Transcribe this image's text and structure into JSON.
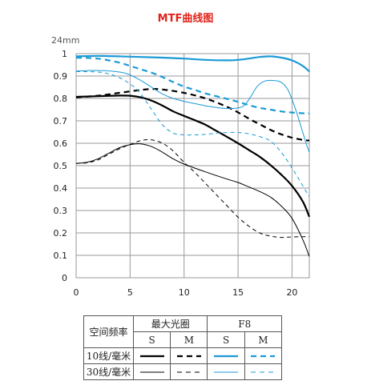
{
  "chart_data": {
    "type": "line",
    "title": "MTF曲线图",
    "focal_label": "24mm",
    "xlim": [
      0,
      21.6
    ],
    "ylim": [
      0,
      1
    ],
    "x_ticks": [
      0,
      5,
      10,
      15,
      20
    ],
    "y_ticks": [
      0,
      0.1,
      0.2,
      0.3,
      0.4,
      0.5,
      0.6,
      0.7,
      0.8,
      0.9,
      1
    ],
    "y_tick_labels": [
      "0",
      "0.1",
      "0.2",
      "0.3",
      "0.4",
      "0.5",
      "0.6",
      "0.7",
      "0.8",
      "0.9",
      "1"
    ],
    "grid": true,
    "colors": {
      "max_aperture": "#000000",
      "f8": "#1a9ad6",
      "title": "#e2231a"
    },
    "series": [
      {
        "group": "max_aperture",
        "freq": "10",
        "type": "S",
        "points": [
          [
            0,
            0.807
          ],
          [
            2,
            0.81
          ],
          [
            4,
            0.813
          ],
          [
            5,
            0.812
          ],
          [
            6,
            0.805
          ],
          [
            7,
            0.79
          ],
          [
            8,
            0.768
          ],
          [
            9,
            0.742
          ],
          [
            10,
            0.722
          ],
          [
            11,
            0.703
          ],
          [
            12,
            0.682
          ],
          [
            13,
            0.655
          ],
          [
            14,
            0.628
          ],
          [
            15,
            0.6
          ],
          [
            16,
            0.57
          ],
          [
            17,
            0.54
          ],
          [
            18,
            0.503
          ],
          [
            19,
            0.46
          ],
          [
            20,
            0.41
          ],
          [
            21,
            0.34
          ],
          [
            21.6,
            0.272
          ]
        ]
      },
      {
        "group": "max_aperture",
        "freq": "10",
        "type": "M",
        "points": [
          [
            0,
            0.805
          ],
          [
            2,
            0.812
          ],
          [
            4,
            0.825
          ],
          [
            6,
            0.838
          ],
          [
            7,
            0.842
          ],
          [
            8,
            0.84
          ],
          [
            10,
            0.825
          ],
          [
            12,
            0.8
          ],
          [
            14,
            0.762
          ],
          [
            15,
            0.738
          ],
          [
            16,
            0.71
          ],
          [
            17,
            0.685
          ],
          [
            18,
            0.66
          ],
          [
            19,
            0.64
          ],
          [
            20,
            0.625
          ],
          [
            21,
            0.615
          ],
          [
            21.6,
            0.612
          ]
        ]
      },
      {
        "group": "max_aperture",
        "freq": "30",
        "type": "S",
        "points": [
          [
            0,
            0.51
          ],
          [
            1,
            0.515
          ],
          [
            2,
            0.53
          ],
          [
            3,
            0.555
          ],
          [
            4,
            0.58
          ],
          [
            5,
            0.594
          ],
          [
            6,
            0.597
          ],
          [
            7,
            0.585
          ],
          [
            8,
            0.56
          ],
          [
            9,
            0.53
          ],
          [
            10,
            0.507
          ],
          [
            12,
            0.472
          ],
          [
            14,
            0.44
          ],
          [
            15,
            0.425
          ],
          [
            16,
            0.405
          ],
          [
            17,
            0.385
          ],
          [
            18,
            0.36
          ],
          [
            19,
            0.32
          ],
          [
            20,
            0.265
          ],
          [
            21,
            0.17
          ],
          [
            21.6,
            0.095
          ]
        ]
      },
      {
        "group": "max_aperture",
        "freq": "30",
        "type": "M",
        "points": [
          [
            0,
            0.51
          ],
          [
            1,
            0.513
          ],
          [
            2,
            0.525
          ],
          [
            3,
            0.55
          ],
          [
            4,
            0.575
          ],
          [
            5,
            0.595
          ],
          [
            6,
            0.612
          ],
          [
            7,
            0.615
          ],
          [
            8,
            0.6
          ],
          [
            9,
            0.565
          ],
          [
            10,
            0.515
          ],
          [
            11,
            0.47
          ],
          [
            12,
            0.42
          ],
          [
            13,
            0.37
          ],
          [
            14,
            0.32
          ],
          [
            15,
            0.27
          ],
          [
            16,
            0.23
          ],
          [
            17,
            0.2
          ],
          [
            18,
            0.186
          ],
          [
            19,
            0.18
          ],
          [
            20,
            0.182
          ],
          [
            21,
            0.183
          ],
          [
            21.6,
            0.183
          ]
        ]
      },
      {
        "group": "f8",
        "freq": "10",
        "type": "S",
        "points": [
          [
            0,
            0.988
          ],
          [
            2,
            0.99
          ],
          [
            4,
            0.988
          ],
          [
            6,
            0.985
          ],
          [
            8,
            0.982
          ],
          [
            10,
            0.978
          ],
          [
            12,
            0.972
          ],
          [
            14,
            0.97
          ],
          [
            15,
            0.972
          ],
          [
            16,
            0.978
          ],
          [
            17,
            0.985
          ],
          [
            18,
            0.988
          ],
          [
            19,
            0.982
          ],
          [
            20,
            0.97
          ],
          [
            21,
            0.945
          ],
          [
            21.6,
            0.92
          ]
        ]
      },
      {
        "group": "f8",
        "freq": "10",
        "type": "M",
        "points": [
          [
            0,
            0.982
          ],
          [
            2,
            0.978
          ],
          [
            4,
            0.96
          ],
          [
            5,
            0.945
          ],
          [
            6,
            0.93
          ],
          [
            7,
            0.915
          ],
          [
            8,
            0.895
          ],
          [
            9,
            0.873
          ],
          [
            10,
            0.853
          ],
          [
            11,
            0.838
          ],
          [
            12,
            0.822
          ],
          [
            13,
            0.81
          ],
          [
            14,
            0.798
          ],
          [
            15,
            0.785
          ],
          [
            16,
            0.77
          ],
          [
            17,
            0.758
          ],
          [
            18,
            0.75
          ],
          [
            19,
            0.742
          ],
          [
            20,
            0.737
          ],
          [
            21,
            0.734
          ],
          [
            21.6,
            0.733
          ]
        ]
      },
      {
        "group": "f8",
        "freq": "30",
        "type": "S",
        "points": [
          [
            0,
            0.922
          ],
          [
            2,
            0.925
          ],
          [
            4,
            0.918
          ],
          [
            5,
            0.905
          ],
          [
            6,
            0.88
          ],
          [
            7,
            0.85
          ],
          [
            8,
            0.82
          ],
          [
            9,
            0.8
          ],
          [
            10,
            0.787
          ],
          [
            11,
            0.777
          ],
          [
            12,
            0.767
          ],
          [
            13,
            0.76
          ],
          [
            14,
            0.755
          ],
          [
            15,
            0.758
          ],
          [
            15.6,
            0.77
          ],
          [
            16.2,
            0.81
          ],
          [
            16.8,
            0.855
          ],
          [
            17.5,
            0.878
          ],
          [
            18.3,
            0.88
          ],
          [
            19,
            0.872
          ],
          [
            19.6,
            0.84
          ],
          [
            20.2,
            0.77
          ],
          [
            20.8,
            0.68
          ],
          [
            21.3,
            0.6
          ],
          [
            21.6,
            0.56
          ]
        ]
      },
      {
        "group": "f8",
        "freq": "30",
        "type": "M",
        "points": [
          [
            0,
            0.92
          ],
          [
            2,
            0.918
          ],
          [
            3,
            0.91
          ],
          [
            4,
            0.893
          ],
          [
            5,
            0.865
          ],
          [
            6,
            0.82
          ],
          [
            7,
            0.75
          ],
          [
            8,
            0.682
          ],
          [
            9,
            0.645
          ],
          [
            10,
            0.638
          ],
          [
            11,
            0.637
          ],
          [
            12,
            0.64
          ],
          [
            13,
            0.645
          ],
          [
            14,
            0.648
          ],
          [
            15,
            0.648
          ],
          [
            16,
            0.642
          ],
          [
            17,
            0.63
          ],
          [
            18,
            0.61
          ],
          [
            19,
            0.56
          ],
          [
            20,
            0.49
          ],
          [
            21,
            0.41
          ],
          [
            21.6,
            0.362
          ]
        ]
      }
    ]
  },
  "legend": {
    "header_rowlabel": "空间频率",
    "header_max": "最大光圈",
    "header_f8": "F8",
    "s_label": "S",
    "m_label": "M",
    "row10_label": "10线/毫米",
    "row30_label": "30线/毫米"
  }
}
